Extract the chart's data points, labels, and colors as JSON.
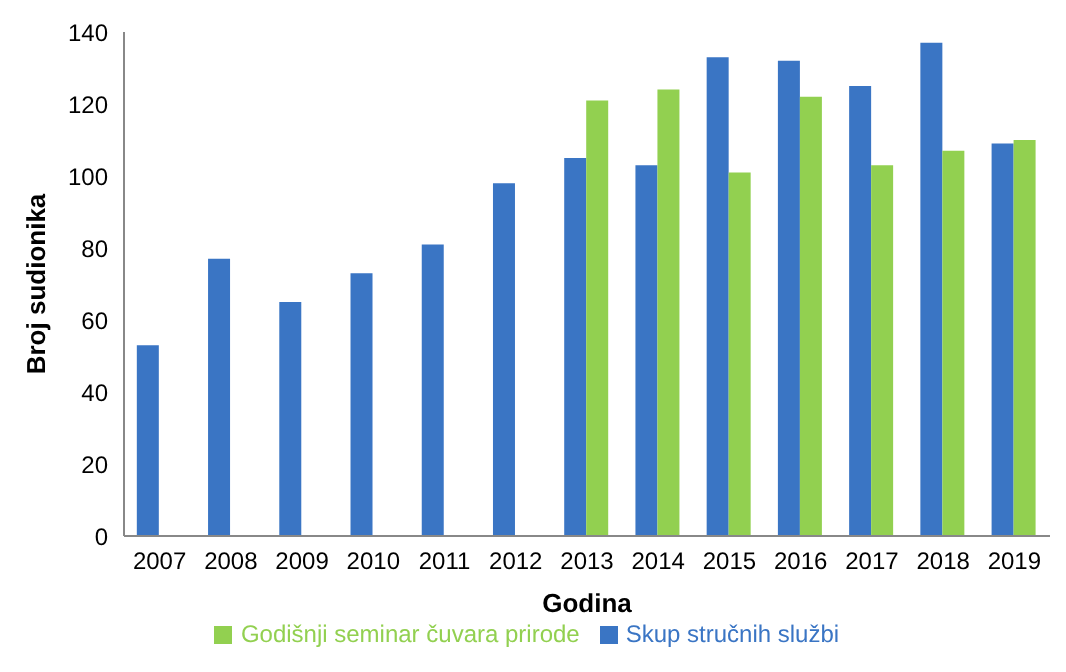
{
  "chart_data": {
    "type": "bar",
    "xlabel": "Godina",
    "ylabel": "Broj sudionika",
    "categories": [
      "2007",
      "2008",
      "2009",
      "2010",
      "2011",
      "2012",
      "2013",
      "2014",
      "2015",
      "2016",
      "2017",
      "2018",
      "2019"
    ],
    "series": [
      {
        "name": "Skup stručnih službi",
        "color": "#3a75c4",
        "values": [
          53,
          77,
          65,
          73,
          81,
          98,
          105,
          103,
          133,
          132,
          125,
          137,
          109
        ]
      },
      {
        "name": "Godišnji seminar čuvara prirode",
        "color": "#92d050",
        "values": [
          null,
          null,
          null,
          null,
          null,
          null,
          121,
          124,
          101,
          122,
          103,
          107,
          110
        ]
      }
    ],
    "ylim": [
      0,
      140
    ],
    "yticks": [
      0,
      20,
      40,
      60,
      80,
      100,
      120,
      140
    ],
    "grid": false,
    "legend": "bottom"
  }
}
